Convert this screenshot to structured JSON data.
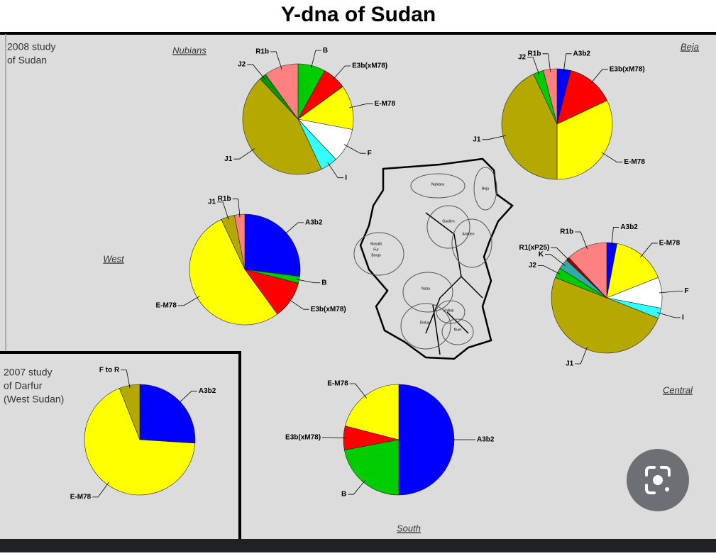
{
  "title": "Y-dna of Sudan",
  "notes": [
    [
      "2008 study",
      "of Sudan"
    ],
    [
      "2007 study",
      "of Darfur",
      "(West Sudan)"
    ]
  ],
  "map_labels": [
    "Nubians",
    "Beja",
    "Gaalien",
    "Arakien",
    "Masalit",
    "Fur",
    "Borgu",
    "Nuba",
    "Shilluk",
    "Dinka",
    "Nuer"
  ],
  "chart_data": [
    {
      "type": "pie",
      "title": "Nubians",
      "categories": [
        "B",
        "E3b(xM78)",
        "E-M78",
        "F",
        "I",
        "J1",
        "J2",
        "R1b"
      ],
      "values": [
        8,
        7,
        13,
        10,
        5,
        45,
        2,
        10
      ],
      "colors": [
        "#00cc00",
        "#ff0000",
        "#ffff00",
        "#ffffff",
        "#33ffff",
        "#b5a800",
        "#009900",
        "#ff8080"
      ]
    },
    {
      "type": "pie",
      "title": "Beja",
      "categories": [
        "A3b2",
        "E3b(xM78)",
        "E-M78",
        "J1",
        "J2",
        "R1b"
      ],
      "values": [
        4,
        14,
        32,
        43,
        3,
        4
      ],
      "colors": [
        "#0000ff",
        "#ff0000",
        "#ffff00",
        "#b5a800",
        "#00cc00",
        "#ff8080"
      ]
    },
    {
      "type": "pie",
      "title": "West",
      "categories": [
        "A3b2",
        "B",
        "E3b(xM78)",
        "E-M78",
        "J1",
        "R1b"
      ],
      "values": [
        27,
        2,
        11,
        53,
        4,
        3
      ],
      "colors": [
        "#0000ff",
        "#00cc00",
        "#ff0000",
        "#ffff00",
        "#b5a800",
        "#ff8080"
      ]
    },
    {
      "type": "pie",
      "title": "Central",
      "categories": [
        "A3b2",
        "E-M78",
        "F",
        "I",
        "J1",
        "J2",
        "K",
        "R1(xP25)",
        "R1b"
      ],
      "values": [
        3,
        16,
        9,
        3,
        50,
        3,
        3,
        1,
        12
      ],
      "colors": [
        "#0000ff",
        "#ffff00",
        "#ffffff",
        "#33ffff",
        "#b5a800",
        "#00cc00",
        "#33aaaa",
        "#a00000",
        "#ff8080"
      ]
    },
    {
      "type": "pie",
      "categories": [
        "A3b2",
        "E-M78",
        "F to R"
      ],
      "values": [
        26,
        68,
        6
      ],
      "colors": [
        "#0000ff",
        "#ffff00",
        "#b5a800"
      ]
    },
    {
      "type": "pie",
      "title": "South",
      "categories": [
        "A3b2",
        "B",
        "E3b(xM78)",
        "E-M78"
      ],
      "values": [
        50,
        22,
        7,
        21
      ],
      "colors": [
        "#0000ff",
        "#00cc00",
        "#ff0000",
        "#ffff00"
      ]
    }
  ]
}
